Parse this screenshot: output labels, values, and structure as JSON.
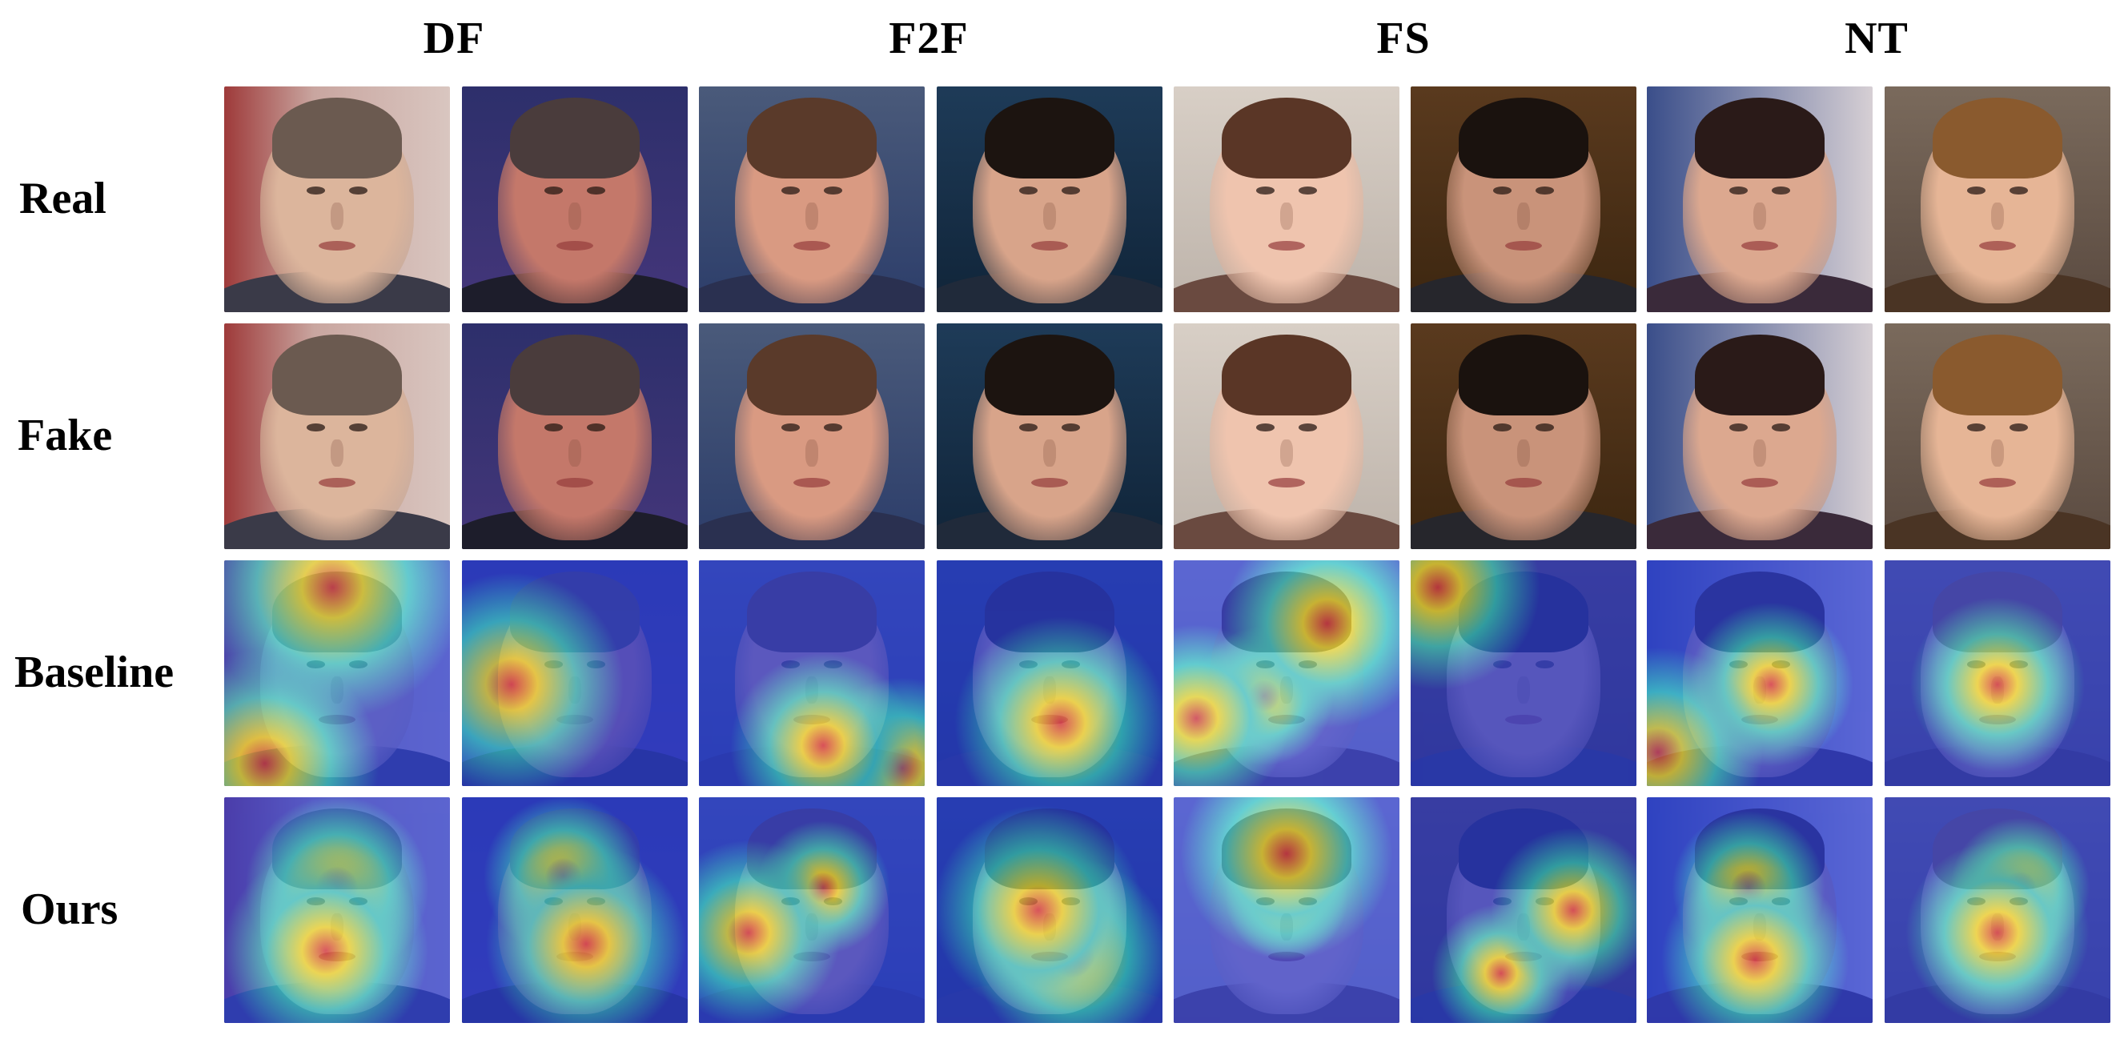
{
  "columns": [
    {
      "label": "DF"
    },
    {
      "label": "F2F"
    },
    {
      "label": "FS"
    },
    {
      "label": "NT"
    }
  ],
  "rows": [
    {
      "label": "Real"
    },
    {
      "label": "Fake"
    },
    {
      "label": "Baseline"
    },
    {
      "label": "Ours"
    }
  ],
  "colors": {
    "heatmap_low": "#2b3fd6",
    "heatmap_mid": "#3ad0d8",
    "heatmap_warm": "#f2e23a",
    "heatmap_high": "#d8364a"
  }
}
